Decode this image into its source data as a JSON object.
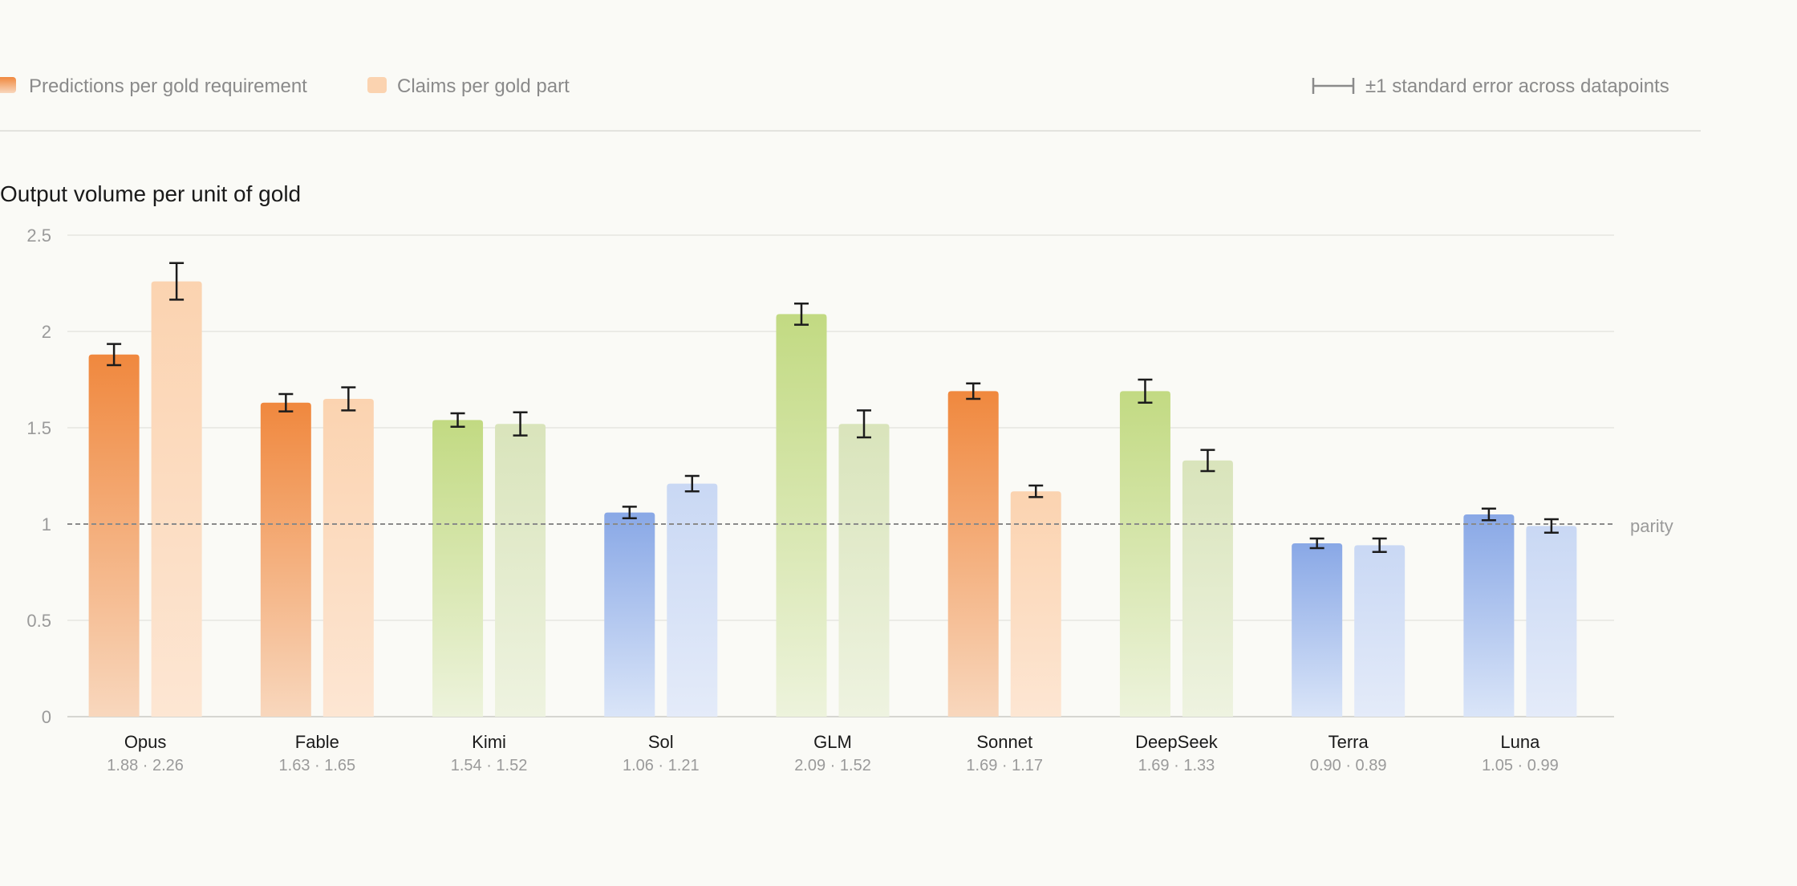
{
  "legend": {
    "series_1": "Predictions per gold requirement",
    "series_2": "Claims per gold part",
    "error_bar": "±1 standard error across datapoints"
  },
  "colors": {
    "background": "#fafaf6",
    "orange_dark": "#f0883e",
    "orange_light": "#fbd3b0",
    "green_dark": "#c2da82",
    "green_light": "#d9e4bb",
    "blue_dark": "#89a8e6",
    "blue_light": "#c9d8f4",
    "grid": "#ebebe6",
    "parity_line": "#8a8a8a",
    "error_bar": "#1c1c1c",
    "muted_text": "#9a9a9a"
  },
  "chart_data": {
    "type": "bar",
    "title": "Output volume per unit of gold",
    "ylim": [
      0,
      2.5
    ],
    "yticks": [
      "0",
      "0.5",
      "1",
      "1.5",
      "2",
      "2.5"
    ],
    "reference_line": {
      "value": 1,
      "label": "parity"
    },
    "categories": [
      "Opus",
      "Fable",
      "Kimi",
      "Sol",
      "GLM",
      "Sonnet",
      "DeepSeek",
      "Terra",
      "Luna"
    ],
    "category_values_label": [
      "1.88 · 2.26",
      "1.63 · 1.65",
      "1.54 · 1.52",
      "1.06 · 1.21",
      "2.09 · 1.52",
      "1.69 · 1.17",
      "1.69 · 1.33",
      "0.90 · 0.89",
      "1.05 · 0.99"
    ],
    "category_color_family": [
      "orange",
      "orange",
      "green",
      "blue",
      "green",
      "orange",
      "green",
      "blue",
      "blue"
    ],
    "series": [
      {
        "name": "Predictions per gold requirement",
        "values": [
          1.88,
          1.63,
          1.54,
          1.06,
          2.09,
          1.69,
          1.69,
          0.9,
          1.05
        ],
        "errors": [
          0.055,
          0.045,
          0.035,
          0.03,
          0.055,
          0.04,
          0.06,
          0.025,
          0.03
        ]
      },
      {
        "name": "Claims per gold part",
        "values": [
          2.26,
          1.65,
          1.52,
          1.21,
          1.52,
          1.17,
          1.33,
          0.89,
          0.99
        ],
        "errors": [
          0.095,
          0.06,
          0.06,
          0.04,
          0.07,
          0.03,
          0.055,
          0.035,
          0.035
        ]
      }
    ]
  }
}
